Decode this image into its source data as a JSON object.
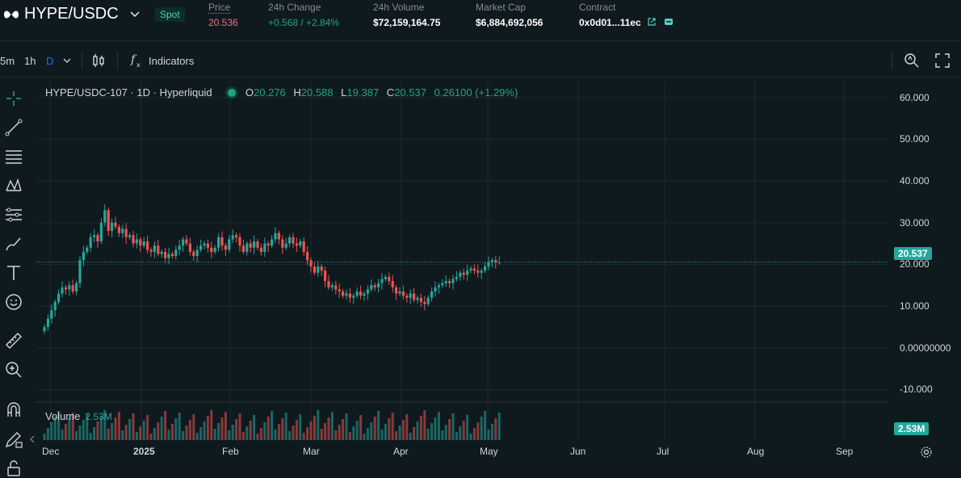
{
  "header": {
    "pair": "HYPE/USDC",
    "market_type": "Spot",
    "stats": [
      {
        "label": "Price",
        "value": "20.536",
        "tone": "red"
      },
      {
        "label": "24h Change",
        "value": "+0.568 / +2.84%",
        "tone": "green"
      },
      {
        "label": "24h Volume",
        "value": "$72,159,164.75",
        "tone": "white"
      },
      {
        "label": "Market Cap",
        "value": "$6,884,692,056",
        "tone": "white"
      },
      {
        "label": "Contract",
        "value": "0x0d01...11ec",
        "tone": "white"
      }
    ]
  },
  "toolbar": {
    "intervals": [
      "5m",
      "1h",
      "D"
    ],
    "active_interval": "D",
    "indicators_label": "Indicators"
  },
  "legend": {
    "symbol": "HYPE/USDC-107 · 1D · Hyperliquid",
    "o_label": "O",
    "o": "20.276",
    "h_label": "H",
    "h": "20.588",
    "l_label": "L",
    "l": "19.387",
    "c_label": "C",
    "c": "20.537",
    "change": "0.26100 (+1.29%)"
  },
  "volume": {
    "label": "Volume",
    "value": "2.53M",
    "tag": "2.53M"
  },
  "price_tag": "20.537",
  "colors": {
    "up": "#26a69a",
    "down": "#ef5350",
    "accent": "#2962ff",
    "bg": "#0f1a1f"
  },
  "left_tool_icons": [
    "crosshair-icon",
    "trendline-icon",
    "fib-icon",
    "pattern-icon",
    "gann-icon",
    "brush-icon",
    "text-icon",
    "emoji-icon",
    "ruler-icon",
    "zoom-in-icon",
    "magnet-icon",
    "lock-drawing-icon",
    "lock-icon"
  ],
  "chart_data": {
    "type": "candlestick",
    "x_ticks": [
      "Dec",
      "2025",
      "Feb",
      "Mar",
      "Apr",
      "May",
      "Jun",
      "Jul",
      "Aug",
      "Sep"
    ],
    "y_ticks": [
      "60.000",
      "50.000",
      "40.000",
      "30.000",
      "20.000",
      "10.000",
      "0.00000000",
      "-10.000"
    ],
    "ylim": [
      -13,
      64
    ],
    "last_price": 20.537,
    "closes": [
      5.0,
      7.0,
      9.0,
      11.0,
      13.0,
      14.5,
      14.0,
      15.0,
      13.5,
      15.5,
      21.0,
      23.0,
      24.0,
      26.5,
      27.0,
      25.5,
      30.0,
      33.0,
      28.0,
      30.0,
      29.0,
      27.5,
      28.5,
      26.5,
      27.0,
      25.0,
      26.0,
      24.5,
      25.5,
      23.5,
      23.0,
      24.5,
      22.5,
      23.0,
      21.5,
      22.5,
      22.0,
      23.5,
      24.5,
      26.0,
      25.0,
      23.0,
      22.0,
      23.5,
      24.5,
      25.0,
      24.0,
      23.0,
      24.0,
      26.5,
      24.5,
      23.5,
      26.0,
      27.0,
      26.5,
      24.5,
      23.0,
      25.0,
      24.0,
      25.5,
      24.0,
      23.0,
      25.0,
      24.5,
      26.0,
      27.5,
      26.0,
      24.0,
      25.0,
      26.5,
      25.0,
      24.5,
      25.5,
      23.0,
      21.0,
      19.5,
      18.0,
      19.5,
      18.5,
      16.0,
      14.5,
      15.0,
      14.0,
      13.5,
      12.5,
      13.0,
      12.0,
      12.5,
      13.5,
      12.5,
      13.0,
      14.0,
      15.0,
      14.5,
      15.5,
      16.5,
      17.0,
      16.0,
      14.5,
      13.0,
      13.5,
      12.5,
      12.0,
      13.0,
      11.5,
      12.0,
      11.0,
      10.5,
      12.0,
      13.5,
      14.5,
      15.0,
      15.5,
      16.0,
      15.5,
      16.5,
      17.0,
      18.0,
      17.5,
      18.5,
      19.0,
      18.5,
      18.0,
      18.5,
      19.5,
      20.5,
      21.0,
      20.5,
      20.537
    ],
    "volume_max_label": "2.53M"
  }
}
